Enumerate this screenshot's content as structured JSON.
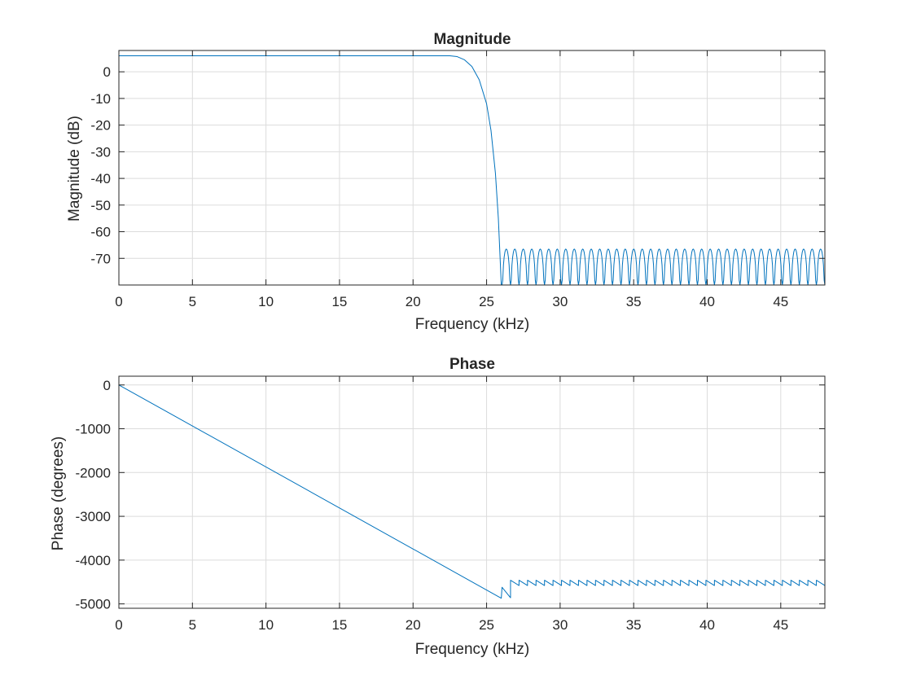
{
  "colors": {
    "line": "#0072bd",
    "axis": "#262626",
    "grid": "#dcdcdc",
    "background": "#ffffff"
  },
  "chart_data": [
    {
      "type": "line",
      "title": "Magnitude",
      "xlabel": "Frequency (kHz)",
      "ylabel": "Magnitude (dB)",
      "xlim": [
        0,
        48
      ],
      "ylim": [
        -80,
        8
      ],
      "xticks": [
        0,
        5,
        10,
        15,
        20,
        25,
        30,
        35,
        40,
        45
      ],
      "yticks": [
        0,
        -10,
        -20,
        -30,
        -40,
        -50,
        -60,
        -70
      ],
      "grid": true,
      "legend": "none",
      "series": [
        {
          "x": [
            0,
            20,
            22.5,
            23,
            23.5,
            24,
            24.5,
            25,
            25.3,
            25.6,
            25.8,
            26.0
          ],
          "y": [
            6,
            6,
            6,
            5.7,
            4.5,
            2,
            -3,
            -12,
            -22,
            -38,
            -55,
            -80
          ],
          "stopband": {
            "start_khz": 26.05,
            "end_khz": 48,
            "lobe_count": 38,
            "peak_db": -66.5,
            "first_lobe_peak_db": -66.5,
            "floor_db": -80
          }
        }
      ]
    },
    {
      "type": "line",
      "title": "Phase",
      "xlabel": "Frequency (kHz)",
      "ylabel": "Phase (degrees)",
      "xlim": [
        0,
        48
      ],
      "ylim": [
        -5100,
        200
      ],
      "xticks": [
        0,
        5,
        10,
        15,
        20,
        25,
        30,
        35,
        40,
        45
      ],
      "yticks": [
        0,
        -1000,
        -2000,
        -3000,
        -4000,
        -5000
      ],
      "grid": true,
      "legend": "none",
      "series": [
        {
          "x": [
            0,
            26.0
          ],
          "y": [
            0,
            -4870
          ],
          "stopband": {
            "start_khz": 26.05,
            "end_khz": 48,
            "jump_count": 38,
            "high_deg": -4460,
            "low_deg": -4580,
            "first_low_deg": -4860,
            "first_high_deg": -4620
          }
        }
      ]
    }
  ]
}
